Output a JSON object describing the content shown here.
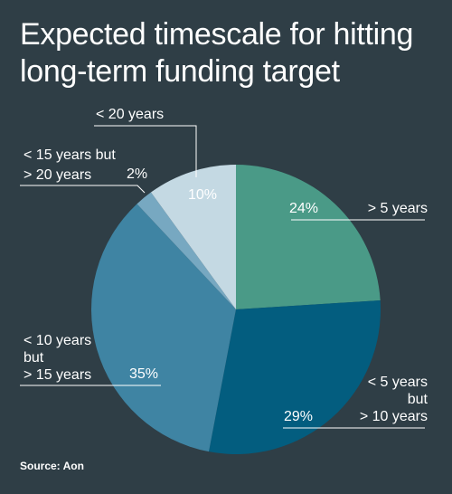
{
  "title_line1": "Expected timescale for hitting",
  "title_line2": "long-term funding target",
  "source": "Source: Aon",
  "chart_data": {
    "type": "pie",
    "title": "Expected timescale for hitting long-term funding target",
    "unit": "%",
    "slices": [
      {
        "label": "> 5 years",
        "value": 24,
        "value_label": "24%",
        "color": "#4a9a87"
      },
      {
        "label": "< 5 years but > 10 years",
        "value": 29,
        "value_label": "29%",
        "color": "#035d7f"
      },
      {
        "label": "< 10 years but > 15 years",
        "value": 35,
        "value_label": "35%",
        "color": "#3f84a3"
      },
      {
        "label": "< 15 years but > 20 years",
        "value": 2,
        "value_label": "2%",
        "color": "#77a8c1"
      },
      {
        "label": "< 20 years",
        "value": 10,
        "value_label": "10%",
        "color": "#c4d9e3"
      }
    ],
    "label_lines": {
      "s0": [
        "> 5 years"
      ],
      "s1": [
        "< 5 years",
        "but",
        "> 10 years"
      ],
      "s2": [
        "< 10 years",
        "but",
        "> 15 years"
      ],
      "s3": [
        "< 15 years but",
        "> 20 years"
      ],
      "s4": [
        "< 20 years"
      ]
    },
    "start_angle": "12 o'clock",
    "direction": "clockwise"
  }
}
